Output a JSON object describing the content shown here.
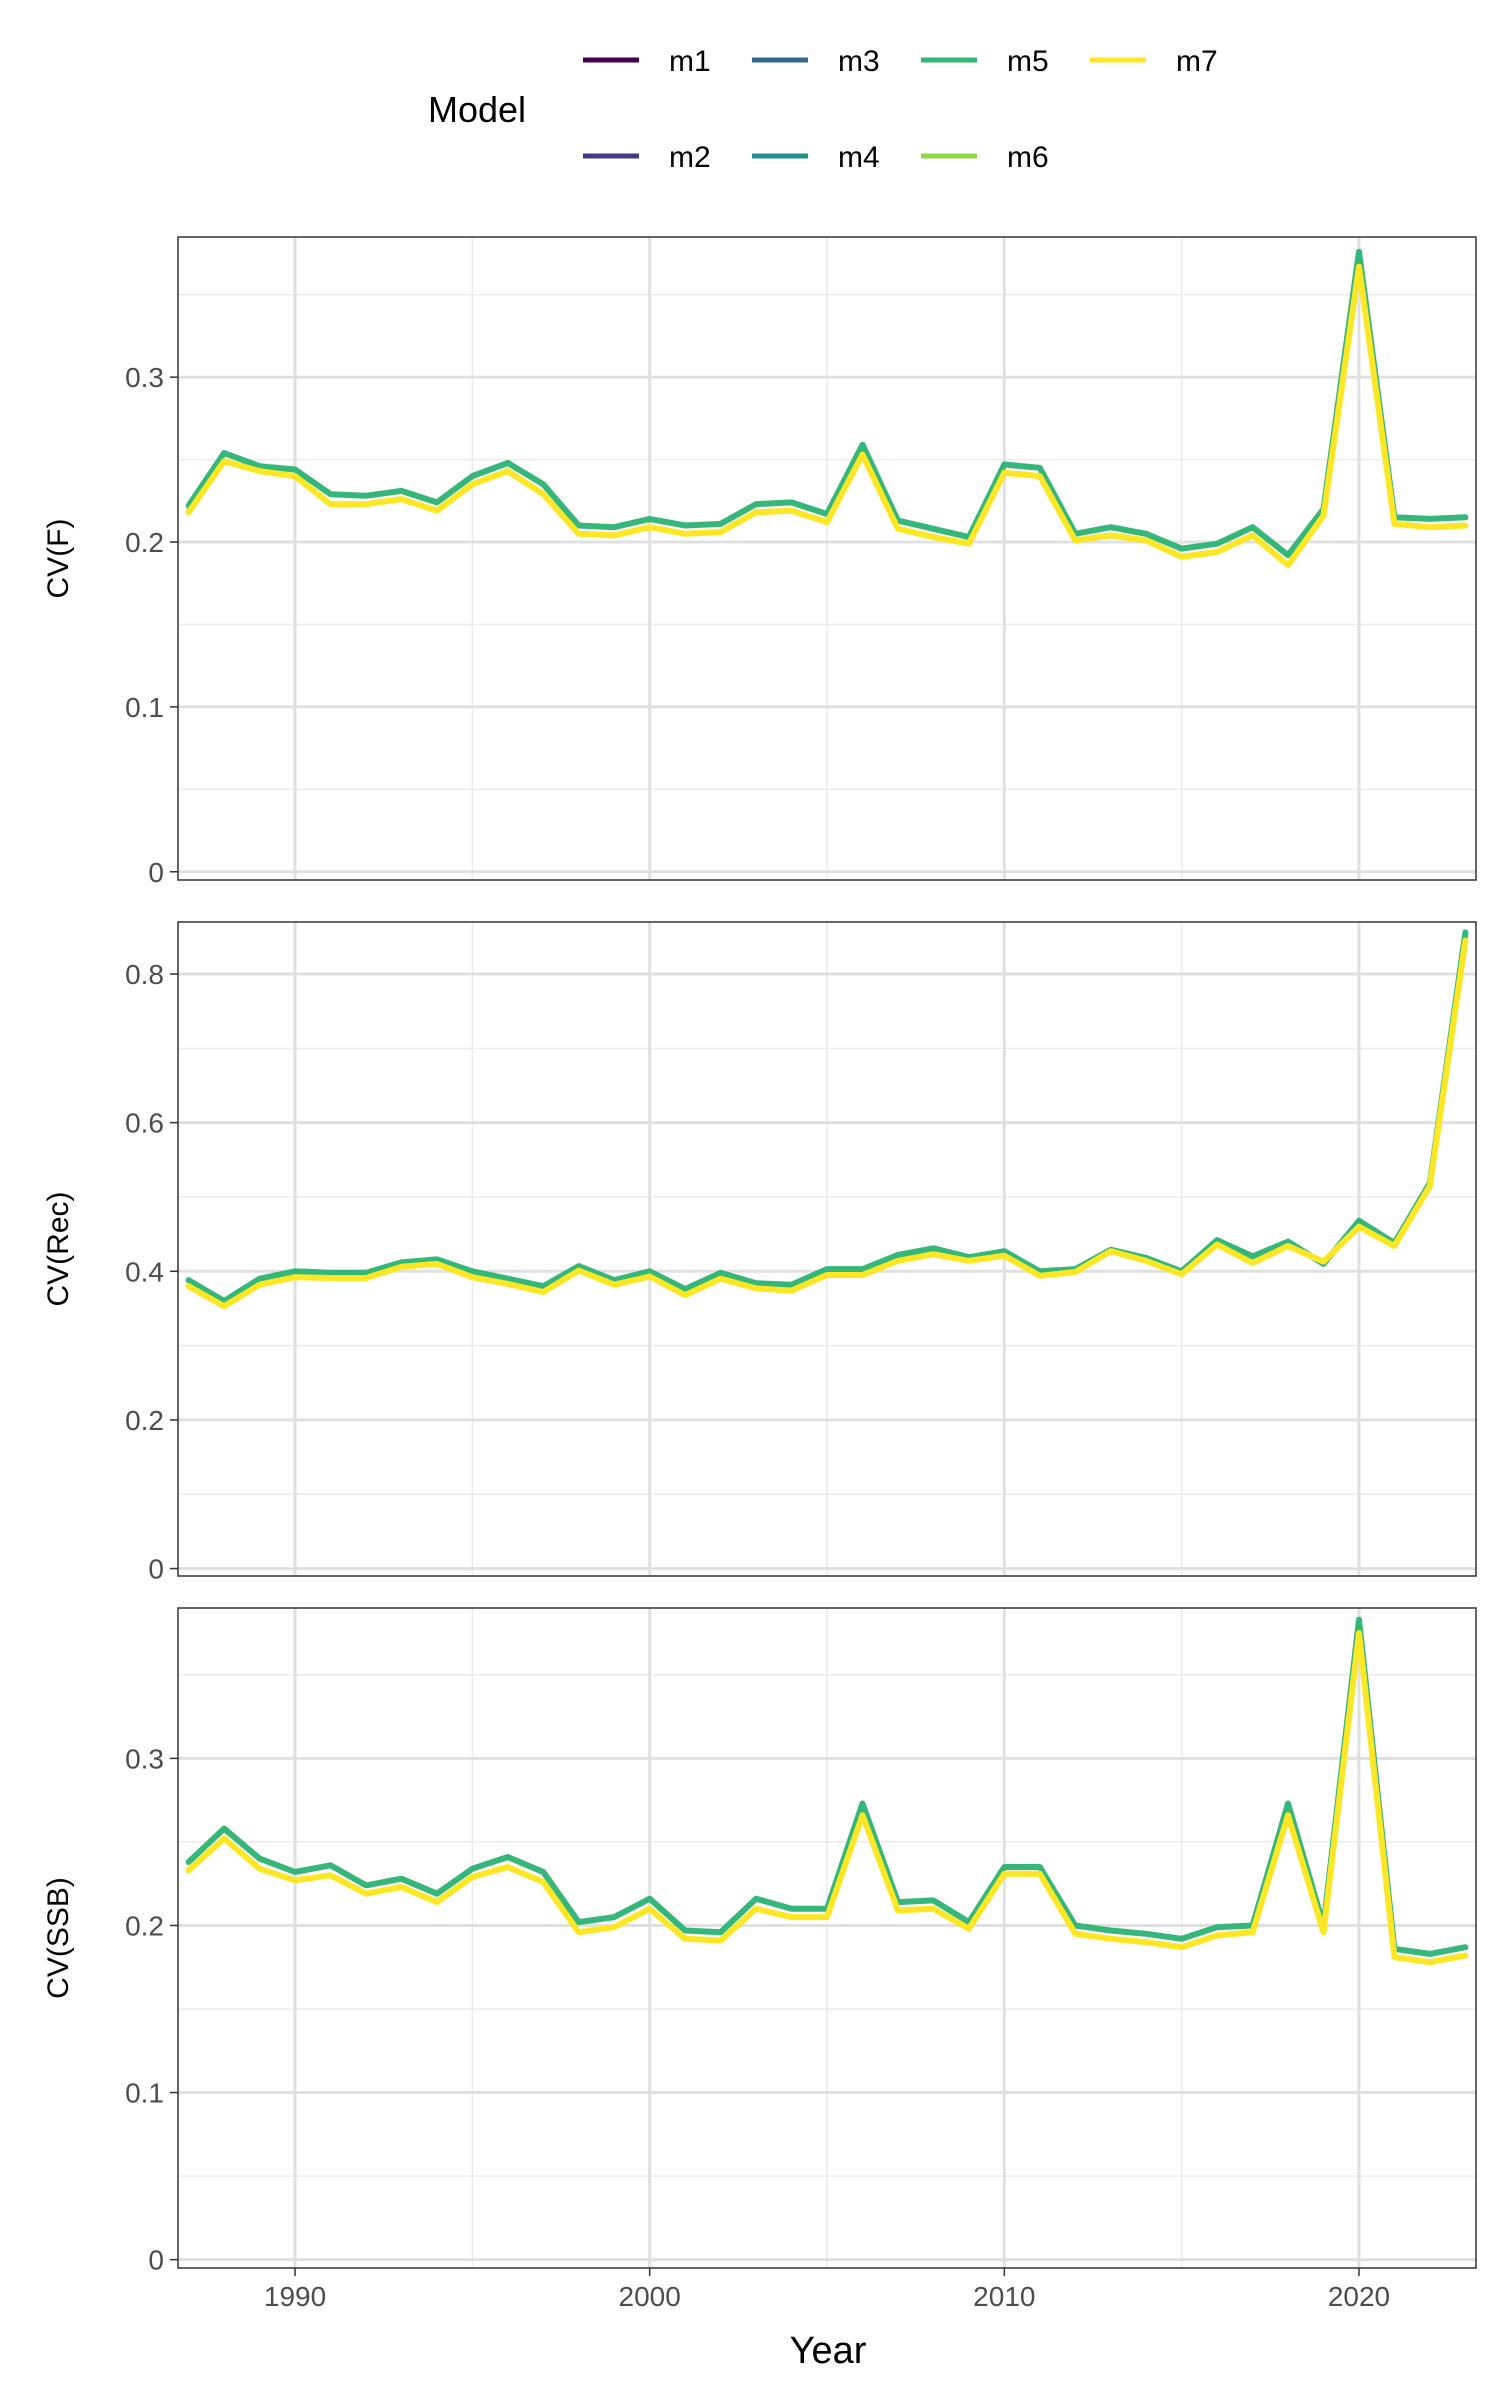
{
  "chart_data": {
    "type": "line",
    "xlabel": "Year",
    "x": [
      1987,
      1988,
      1989,
      1990,
      1991,
      1992,
      1993,
      1994,
      1995,
      1996,
      1997,
      1998,
      1999,
      2000,
      2001,
      2002,
      2003,
      2004,
      2005,
      2006,
      2007,
      2008,
      2009,
      2010,
      2011,
      2012,
      2013,
      2014,
      2015,
      2016,
      2017,
      2018,
      2019,
      2020,
      2021,
      2022,
      2023
    ],
    "xlim": [
      1986.7,
      2023.3
    ],
    "xticks": [
      1990,
      2000,
      2010,
      2020
    ],
    "legend": {
      "title": "Model",
      "placement": "top",
      "entries": [
        {
          "name": "m1",
          "color": "#440154"
        },
        {
          "name": "m2",
          "color": "#443A83"
        },
        {
          "name": "m3",
          "color": "#31688E"
        },
        {
          "name": "m4",
          "color": "#21908C"
        },
        {
          "name": "m5",
          "color": "#35B779"
        },
        {
          "name": "m6",
          "color": "#8FD744"
        },
        {
          "name": "m7",
          "color": "#FDE725"
        }
      ]
    },
    "panels": [
      {
        "ylabel": "CV(F)",
        "ylim": [
          -0.005,
          0.385
        ],
        "yticks": [
          0,
          0.1,
          0.2,
          0.3
        ],
        "ytick_labels": [
          "0",
          "0.1",
          "0.2",
          "0.3"
        ],
        "series": [
          {
            "name": "m5",
            "values": [
              0.222,
              0.254,
              0.246,
              0.244,
              0.229,
              0.228,
              0.231,
              0.224,
              0.24,
              0.248,
              0.235,
              0.21,
              0.209,
              0.214,
              0.21,
              0.211,
              0.223,
              0.224,
              0.217,
              0.259,
              0.213,
              0.208,
              0.203,
              0.247,
              0.245,
              0.205,
              0.209,
              0.205,
              0.196,
              0.199,
              0.209,
              0.192,
              0.22,
              0.376,
              0.215,
              0.214,
              0.215
            ]
          },
          {
            "name": "m7",
            "values": [
              0.218,
              0.249,
              0.243,
              0.24,
              0.223,
              0.223,
              0.226,
              0.219,
              0.235,
              0.243,
              0.229,
              0.205,
              0.204,
              0.209,
              0.205,
              0.206,
              0.218,
              0.219,
              0.212,
              0.253,
              0.208,
              0.203,
              0.199,
              0.242,
              0.24,
              0.201,
              0.204,
              0.201,
              0.191,
              0.194,
              0.204,
              0.186,
              0.216,
              0.367,
              0.211,
              0.209,
              0.21
            ]
          }
        ]
      },
      {
        "ylabel": "CV(Rec)",
        "ylim": [
          -0.01,
          0.87
        ],
        "yticks": [
          0,
          0.2,
          0.4,
          0.6,
          0.8
        ],
        "ytick_labels": [
          "0",
          "0.2",
          "0.4",
          "0.6",
          "0.8"
        ],
        "series": [
          {
            "name": "m5",
            "values": [
              0.388,
              0.36,
              0.39,
              0.4,
              0.398,
              0.398,
              0.412,
              0.416,
              0.4,
              0.39,
              0.38,
              0.407,
              0.388,
              0.4,
              0.376,
              0.398,
              0.384,
              0.382,
              0.403,
              0.403,
              0.422,
              0.431,
              0.419,
              0.427,
              0.4,
              0.403,
              0.429,
              0.418,
              0.4,
              0.442,
              0.42,
              0.44,
              0.41,
              0.468,
              0.438,
              0.519,
              0.856
            ]
          },
          {
            "name": "m7",
            "values": [
              0.38,
              0.353,
              0.382,
              0.392,
              0.391,
              0.391,
              0.406,
              0.41,
              0.392,
              0.383,
              0.372,
              0.401,
              0.382,
              0.393,
              0.368,
              0.39,
              0.377,
              0.374,
              0.395,
              0.395,
              0.414,
              0.423,
              0.414,
              0.421,
              0.394,
              0.399,
              0.427,
              0.414,
              0.396,
              0.436,
              0.411,
              0.434,
              0.413,
              0.46,
              0.434,
              0.515,
              0.845
            ]
          }
        ]
      },
      {
        "ylabel": "CV(SSB)",
        "ylim": [
          -0.005,
          0.39
        ],
        "yticks": [
          0,
          0.1,
          0.2,
          0.3
        ],
        "ytick_labels": [
          "0",
          "0.1",
          "0.2",
          "0.3"
        ],
        "series": [
          {
            "name": "m5",
            "values": [
              0.238,
              0.258,
              0.24,
              0.232,
              0.236,
              0.224,
              0.228,
              0.219,
              0.234,
              0.241,
              0.232,
              0.202,
              0.205,
              0.216,
              0.197,
              0.196,
              0.216,
              0.21,
              0.21,
              0.273,
              0.214,
              0.215,
              0.202,
              0.235,
              0.235,
              0.2,
              0.197,
              0.195,
              0.192,
              0.199,
              0.2,
              0.273,
              0.2,
              0.383,
              0.186,
              0.183,
              0.187
            ]
          },
          {
            "name": "m7",
            "values": [
              0.233,
              0.252,
              0.234,
              0.227,
              0.23,
              0.219,
              0.223,
              0.214,
              0.229,
              0.235,
              0.226,
              0.196,
              0.199,
              0.21,
              0.192,
              0.191,
              0.21,
              0.205,
              0.205,
              0.266,
              0.209,
              0.21,
              0.198,
              0.231,
              0.231,
              0.195,
              0.192,
              0.19,
              0.187,
              0.194,
              0.196,
              0.266,
              0.196,
              0.375,
              0.181,
              0.178,
              0.182
            ]
          }
        ]
      }
    ]
  }
}
